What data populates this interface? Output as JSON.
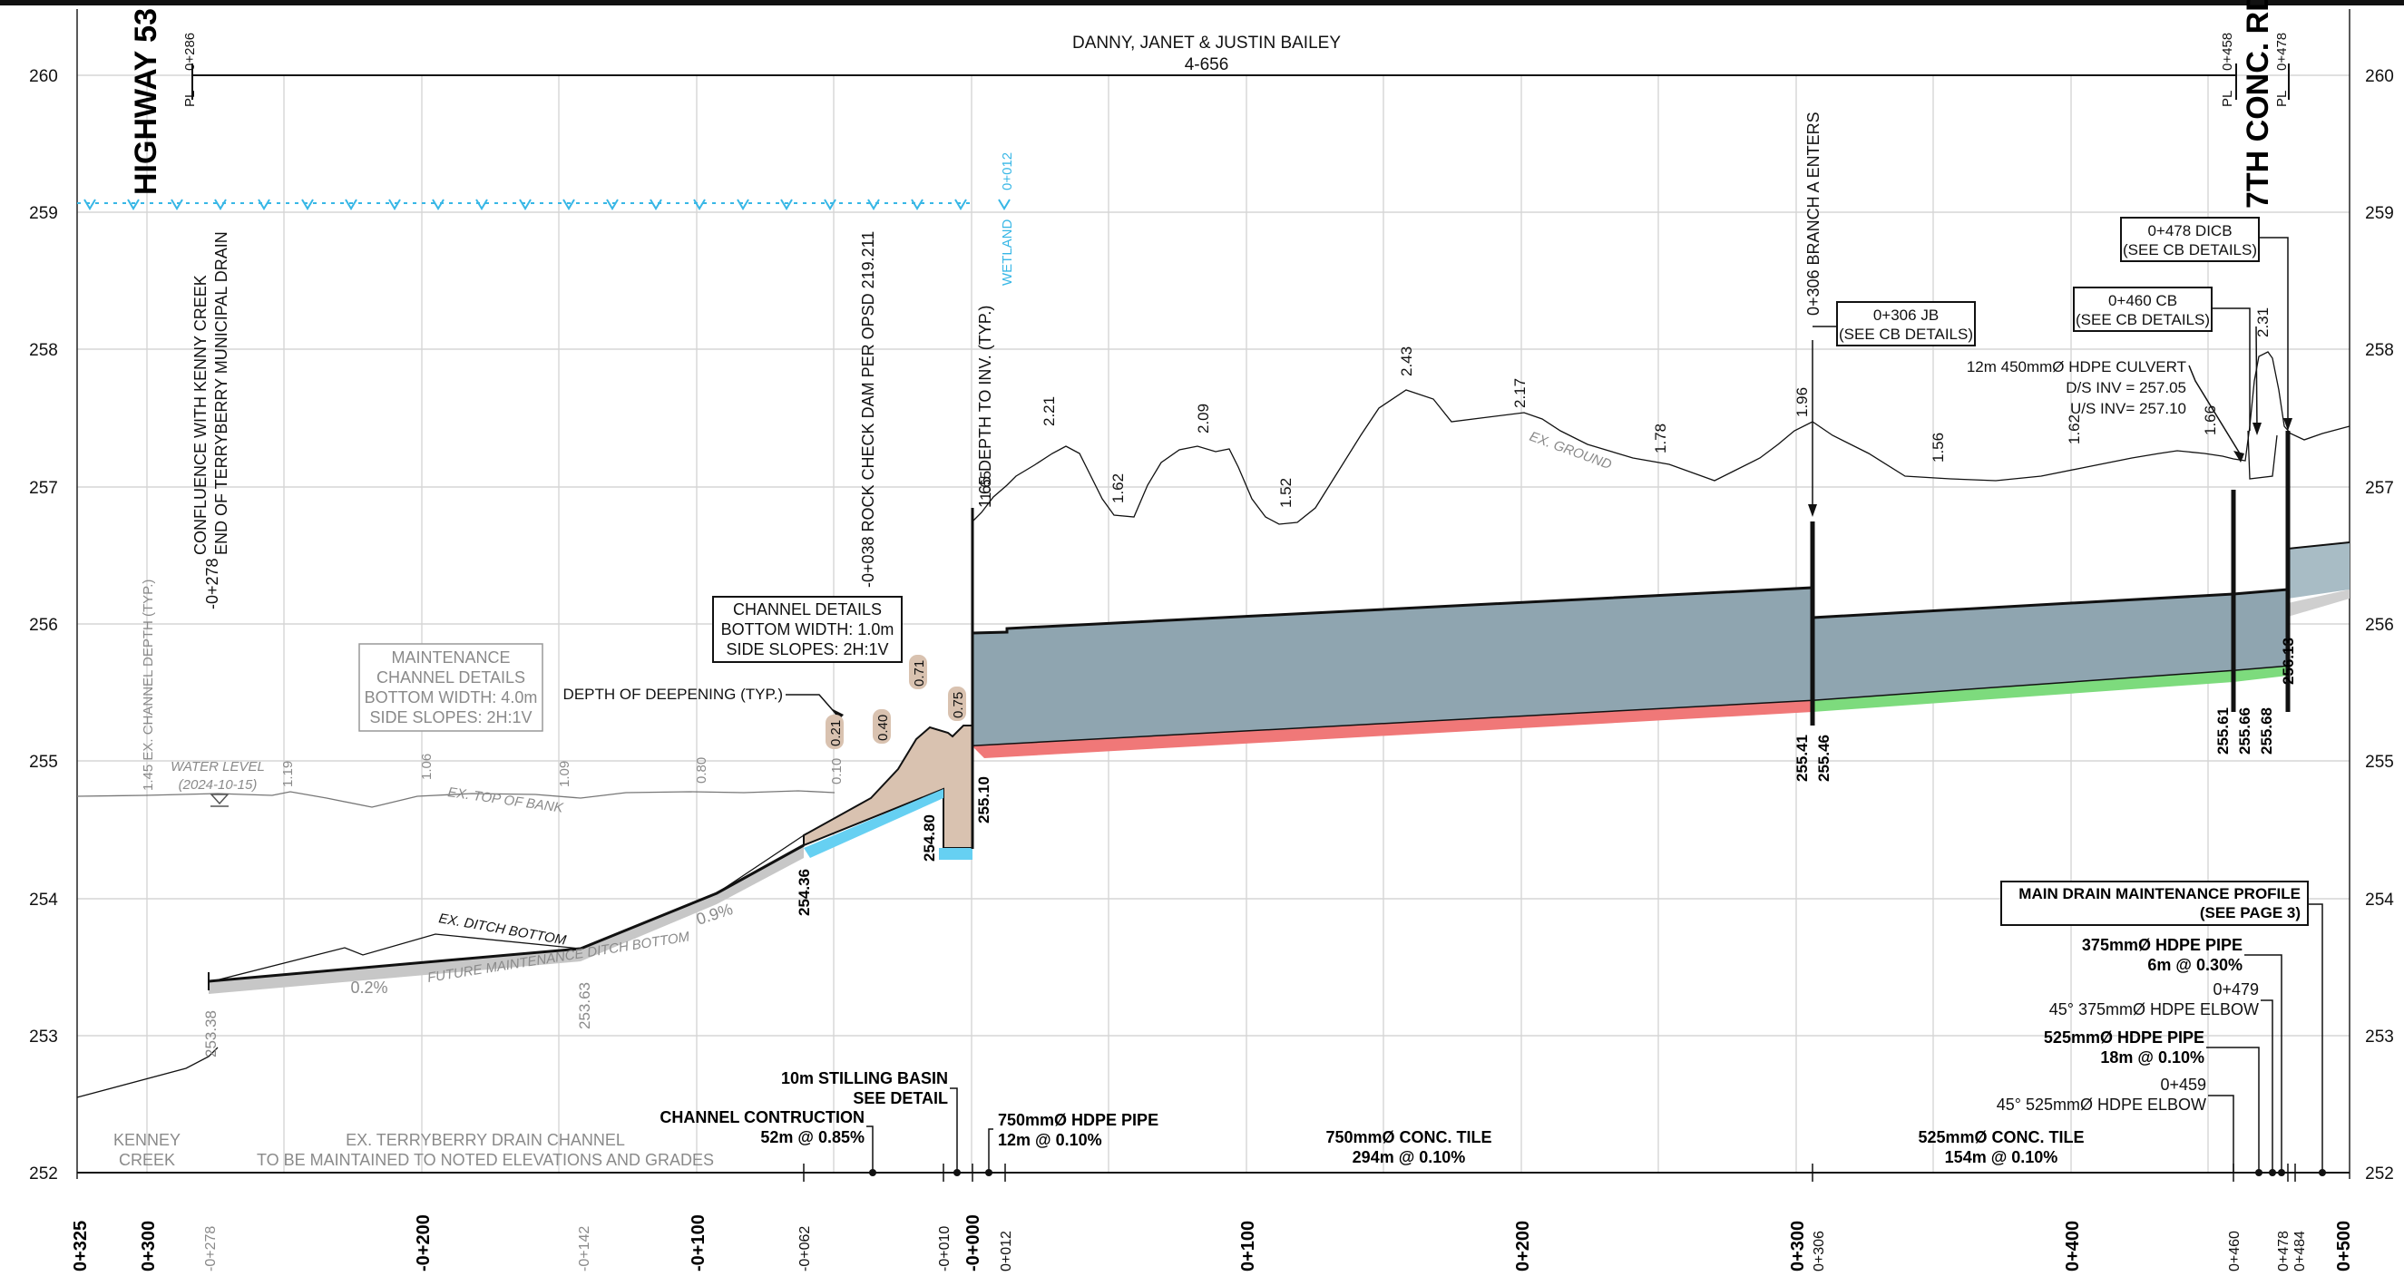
{
  "owner": {
    "name": "DANNY, JANET & JUSTIN BAILEY",
    "lot": "4-656"
  },
  "roads": {
    "left": "HIGHWAY 53",
    "right": "7TH CONC. RD"
  },
  "property_lines": [
    {
      "label": "PL",
      "station": "0+286"
    },
    {
      "label": "PL",
      "station": "0+458"
    },
    {
      "label": "PL",
      "station": "0+478"
    }
  ],
  "elevation_axis": [
    "260",
    "259",
    "258",
    "257",
    "256",
    "255",
    "254",
    "253",
    "252"
  ],
  "station_axis": {
    "major": [
      "0+325",
      "0+300",
      "-0+200",
      "-0+100",
      "-0+000",
      "0+100",
      "0+200",
      "0+300",
      "0+400",
      "0+500"
    ],
    "minor_bold": [
      "-0+278",
      "-0+142",
      "-0+062",
      "-0+010",
      "0+012",
      "0+306",
      "0+460",
      "0+478",
      "0+484"
    ]
  },
  "vertical_labels": {
    "confluence": [
      "CONFLUENCE WITH KENNY CREEK",
      "END OF TERRYBERRY MUNICIPAL DRAIN"
    ],
    "confluence_station": "-0+278",
    "check_dam": "-0+038 ROCK CHECK DAM PER OPSD 219.211",
    "depth_to_inv": "1.65  DEPTH TO INV. (TYP.)",
    "wetland": "WETLAND",
    "wetland_station": "0+012",
    "branch_a": "0+306 BRANCH A ENTERS",
    "channel_depth": "1.45  EX. CHANNEL DEPTH (TYP.)"
  },
  "callouts": {
    "channel_details": [
      "CHANNEL DETAILS",
      "BOTTOM WIDTH: 1.0m",
      "SIDE SLOPES: 2H:1V"
    ],
    "maintenance_details": [
      "MAINTENANCE",
      "CHANNEL DETAILS",
      "BOTTOM WIDTH: 4.0m",
      "SIDE SLOPES: 2H:1V"
    ],
    "depth_of_deepening": "DEPTH OF DEEPENING (TYP.)",
    "jb": [
      "0+306 JB",
      "(SEE CB DETAILS)"
    ],
    "cb460": [
      "0+460 CB",
      "(SEE CB DETAILS)"
    ],
    "dicb478": [
      "0+478 DICB",
      "(SEE CB DETAILS)"
    ],
    "culvert": [
      "12m 450mmØ HDPE CULVERT",
      "D/S INV = 257.05",
      "U/S INV= 257.10"
    ],
    "main_drain": [
      "MAIN DRAIN MAINTENANCE PROFILE",
      "(SEE PAGE 3)"
    ]
  },
  "ground_labels": {
    "water_level": [
      "WATER LEVEL",
      "(2024-10-15)"
    ],
    "ex_top_of_bank": "EX. TOP OF BANK",
    "ex_ditch_bottom": "EX. DITCH BOTTOM",
    "future_bottom": "FUTURE MAINTENANCE DITCH BOTTOM",
    "ex_ground": "EX. GROUND",
    "grade_02": "0.2%",
    "grade_09": "0.9%"
  },
  "depths_gray": [
    "1.19",
    "1.06",
    "1.09",
    "0.80",
    "0.10"
  ],
  "depths_deepening": [
    "0.21",
    "0.40",
    "0.71",
    "0.75"
  ],
  "depths_cover": [
    "1.65",
    "2.21",
    "1.62",
    "2.09",
    "1.52",
    "2.43",
    "2.17",
    "1.78",
    "1.96",
    "1.56",
    "1.62",
    "1.66",
    "2.31"
  ],
  "inverts": {
    "gray": [
      "253.38",
      "253.63"
    ],
    "bold": [
      "254.36",
      "254.80",
      "255.10",
      "255.41",
      "255.46",
      "255.61",
      "255.66",
      "255.68",
      "256.13"
    ]
  },
  "bottom_notes": {
    "kenney": [
      "KENNEY",
      "CREEK"
    ],
    "terryberry": [
      "EX. TERRYBERRY DRAIN CHANNEL",
      "TO BE MAINTAINED TO NOTED ELEVATIONS AND GRADES"
    ],
    "channel_construction": [
      "CHANNEL CONTRUCTION",
      "52m @ 0.85%"
    ],
    "stilling_basin": [
      "10m STILLING BASIN",
      "SEE DETAIL"
    ],
    "hdpe750": [
      "750mmØ HDPE PIPE",
      "12m @ 0.10%"
    ],
    "conc750": [
      "750mmØ CONC. TILE",
      "294m @ 0.10%"
    ],
    "conc525": [
      "525mmØ CONC. TILE",
      "154m @ 0.10%"
    ],
    "hdpe375": [
      "375mmØ HDPE PIPE",
      "6m @ 0.30%"
    ],
    "elbow375": [
      "0+479",
      "45° 375mmØ HDPE ELBOW"
    ],
    "hdpe525": [
      "525mmØ HDPE PIPE",
      "18m @ 0.10%"
    ],
    "elbow525": [
      "0+459",
      "45° 525mmØ HDPE ELBOW"
    ]
  },
  "colors": {
    "pipe_fill": "#8fa5b0",
    "excavation": "#d9c2b0",
    "red_band": "#f07878",
    "green_band": "#7ddb7d",
    "blue_band": "#66d0f2",
    "wetland_cyan": "#38b7e6"
  }
}
